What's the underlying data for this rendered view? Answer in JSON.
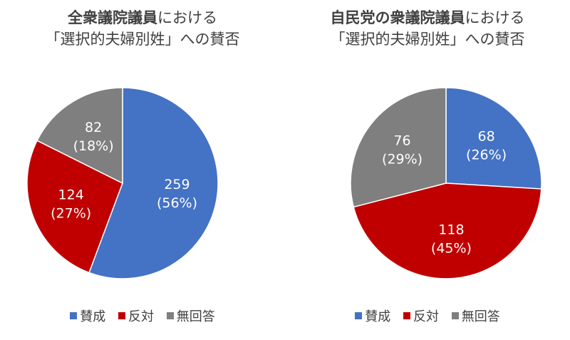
{
  "chart_data": [
    {
      "type": "pie",
      "title_bold": "全衆議院議員",
      "title_rest": "における",
      "title_line2": "「選択的夫婦別姓」への賛否",
      "categories": [
        "賛成",
        "反対",
        "無回答"
      ],
      "values": [
        259,
        124,
        82
      ],
      "percent_labels": [
        "(56%)",
        "(27%)",
        "(18%)"
      ],
      "colors": [
        "#4472C4",
        "#C00000",
        "#7F7F7F"
      ],
      "legend": "bottom"
    },
    {
      "type": "pie",
      "title_bold": "自民党の衆議院議員",
      "title_rest": "における",
      "title_line2": "「選択的夫婦別姓」への賛否",
      "categories": [
        "賛成",
        "反対",
        "無回答"
      ],
      "values": [
        68,
        118,
        76
      ],
      "percent_labels": [
        "(26%)",
        "(45%)",
        "(29%)"
      ],
      "colors": [
        "#4472C4",
        "#C00000",
        "#7F7F7F"
      ],
      "legend": "bottom"
    }
  ]
}
